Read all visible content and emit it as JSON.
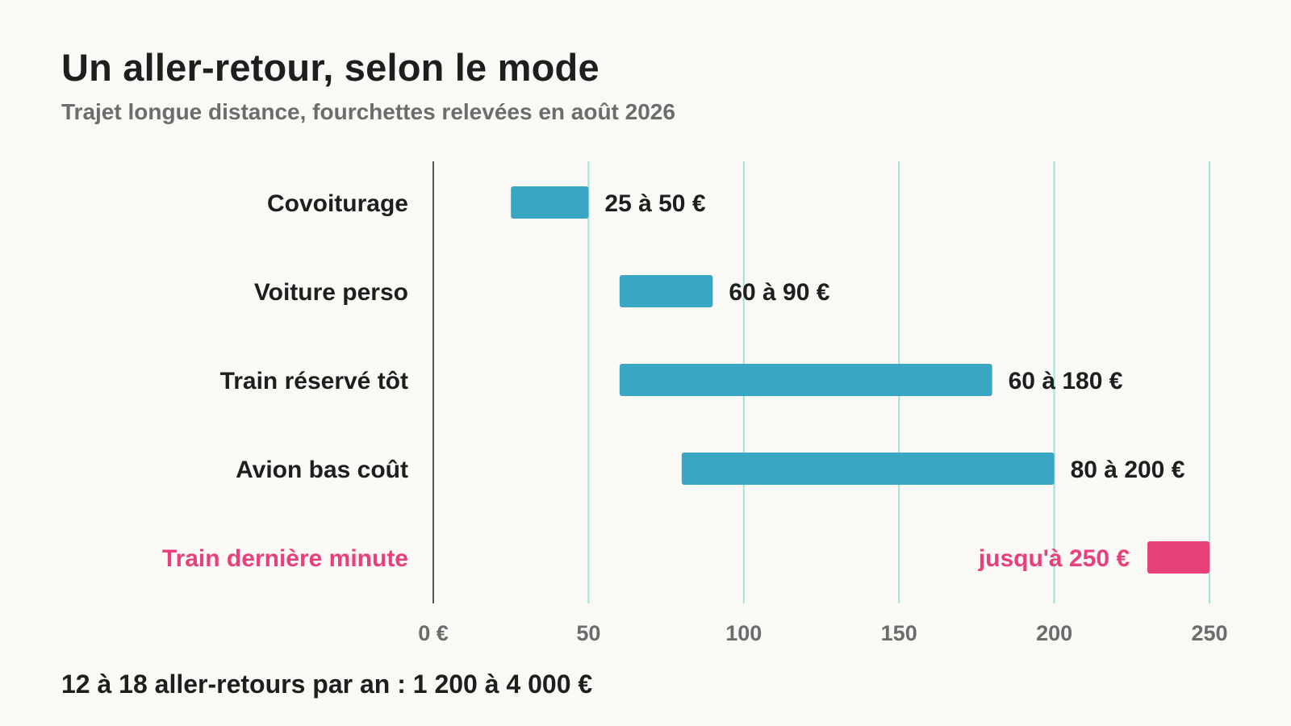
{
  "chart_data": {
    "type": "bar",
    "orientation": "horizontal",
    "style": "range",
    "title": "Un aller-retour, selon le mode",
    "subtitle": "Trajet longue distance, fourchettes relevées en août 2026",
    "footer": "12 à 18 aller-retours par an : 1 200 à 4 000 €",
    "categories": [
      "Covoiturage",
      "Voiture perso",
      "Train réservé tôt",
      "Avion bas coût",
      "Train dernière minute"
    ],
    "ranges": [
      {
        "min": 25,
        "max": 50,
        "label": "25 à 50 €",
        "highlight": false
      },
      {
        "min": 60,
        "max": 90,
        "label": "60 à 90 €",
        "highlight": false
      },
      {
        "min": 60,
        "max": 180,
        "label": "60 à 180 €",
        "highlight": false
      },
      {
        "min": 80,
        "max": 200,
        "label": "80 à 200 €",
        "highlight": false
      },
      {
        "min": 230,
        "max": 250,
        "label": "jusqu'à 250 €",
        "highlight": true
      }
    ],
    "xlim": [
      0,
      250
    ],
    "xticks": [
      0,
      50,
      100,
      150,
      200,
      250
    ],
    "xtick_labels": [
      "0 €",
      "50",
      "100",
      "150",
      "200",
      "250"
    ],
    "grid": "vertical",
    "colors": {
      "bar": "#3ba5c4",
      "highlight": "#e8407a",
      "gridline": "#9ee5d9",
      "axis": "#555555",
      "label": "#1e1e1e",
      "tick": "#6c6c6c"
    }
  }
}
